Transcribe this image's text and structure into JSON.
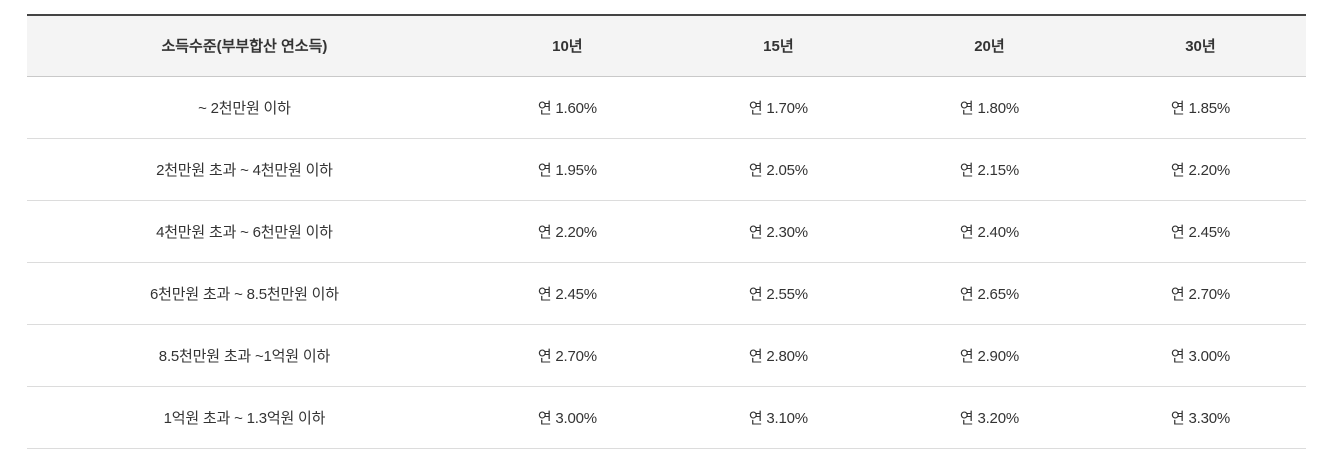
{
  "chart_data": {
    "type": "table",
    "columns": [
      "소득수준(부부합산 연소득)",
      "10년",
      "15년",
      "20년",
      "30년"
    ],
    "rows": [
      {
        "label": "~ 2천만원 이하",
        "values": [
          "연 1.60%",
          "연 1.70%",
          "연 1.80%",
          "연 1.85%"
        ],
        "rates_percent": [
          1.6,
          1.7,
          1.8,
          1.85
        ]
      },
      {
        "label": "2천만원 초과 ~ 4천만원 이하",
        "values": [
          "연 1.95%",
          "연 2.05%",
          "연 2.15%",
          "연 2.20%"
        ],
        "rates_percent": [
          1.95,
          2.05,
          2.15,
          2.2
        ]
      },
      {
        "label": "4천만원 초과 ~ 6천만원 이하",
        "values": [
          "연 2.20%",
          "연 2.30%",
          "연 2.40%",
          "연 2.45%"
        ],
        "rates_percent": [
          2.2,
          2.3,
          2.4,
          2.45
        ]
      },
      {
        "label": "6천만원 초과 ~ 8.5천만원 이하",
        "values": [
          "연 2.45%",
          "연 2.55%",
          "연 2.65%",
          "연 2.70%"
        ],
        "rates_percent": [
          2.45,
          2.55,
          2.65,
          2.7
        ]
      },
      {
        "label": "8.5천만원 초과 ~1억원 이하",
        "values": [
          "연 2.70%",
          "연 2.80%",
          "연 2.90%",
          "연 3.00%"
        ],
        "rates_percent": [
          2.7,
          2.8,
          2.9,
          3.0
        ]
      },
      {
        "label": "1억원 초과 ~ 1.3억원 이하",
        "values": [
          "연 3.00%",
          "연 3.10%",
          "연 3.20%",
          "연 3.30%"
        ],
        "rates_percent": [
          3.0,
          3.1,
          3.2,
          3.3
        ]
      }
    ]
  },
  "colors": {
    "background": "#ffffff",
    "text": "#333333",
    "table_top_border": "#444444",
    "header_background": "#f4f4f4",
    "header_bottom_border": "#c9c9c9",
    "row_border": "#dcdcdc"
  }
}
